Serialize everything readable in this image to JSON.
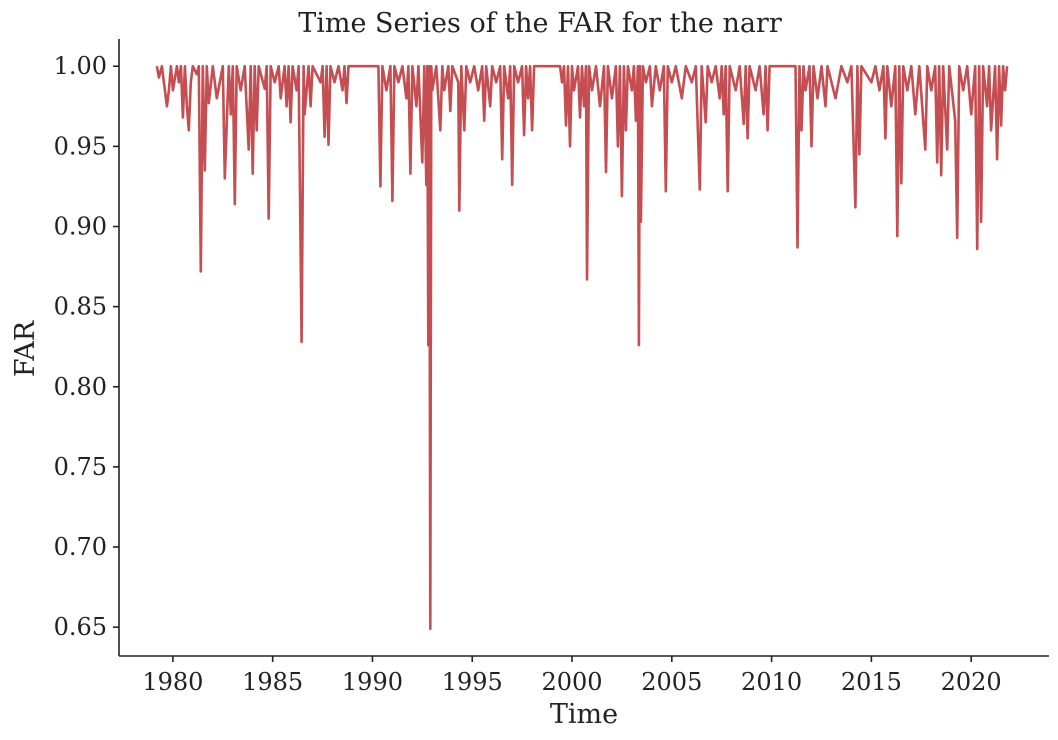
{
  "chart_data": {
    "type": "line",
    "title": "Time Series of the FAR for the narr",
    "xlabel": "Time",
    "ylabel": "FAR",
    "xlim": [
      1977.3,
      2023.9
    ],
    "ylim": [
      0.632,
      1.017
    ],
    "xticks": [
      1980,
      1985,
      1990,
      1995,
      2000,
      2005,
      2010,
      2015,
      2020
    ],
    "yticks": [
      0.65,
      0.7,
      0.75,
      0.8,
      0.85,
      0.9,
      0.95,
      1.0
    ],
    "ytick_labels": [
      "0.65",
      "0.70",
      "0.75",
      "0.80",
      "0.85",
      "0.90",
      "0.95",
      "1.00"
    ],
    "grid": false,
    "colors": {
      "series": "#c44e52",
      "axis": "#222222"
    },
    "series": [
      {
        "points": [
          [
            1979.2,
            1.0
          ],
          [
            1979.3,
            0.993
          ],
          [
            1979.45,
            1.0
          ],
          [
            1979.55,
            0.99
          ],
          [
            1979.7,
            0.975
          ],
          [
            1979.8,
            0.985
          ],
          [
            1979.9,
            1.0
          ],
          [
            1980.0,
            0.985
          ],
          [
            1980.2,
            1.0
          ],
          [
            1980.3,
            0.99
          ],
          [
            1980.4,
            1.0
          ],
          [
            1980.5,
            0.968
          ],
          [
            1980.6,
            1.0
          ],
          [
            1980.7,
            0.975
          ],
          [
            1980.8,
            0.96
          ],
          [
            1980.9,
            0.99
          ],
          [
            1981.0,
            1.0
          ],
          [
            1981.2,
            0.995
          ],
          [
            1981.3,
            1.0
          ],
          [
            1981.4,
            0.872
          ],
          [
            1981.5,
            1.0
          ],
          [
            1981.6,
            0.935
          ],
          [
            1981.7,
            1.0
          ],
          [
            1981.8,
            0.977
          ],
          [
            1982.0,
            1.0
          ],
          [
            1982.2,
            0.98
          ],
          [
            1982.5,
            1.0
          ],
          [
            1982.6,
            0.93
          ],
          [
            1982.8,
            1.0
          ],
          [
            1982.9,
            0.97
          ],
          [
            1983.0,
            1.0
          ],
          [
            1983.1,
            0.914
          ],
          [
            1983.2,
            1.0
          ],
          [
            1983.4,
            0.985
          ],
          [
            1983.6,
            1.0
          ],
          [
            1983.8,
            0.948
          ],
          [
            1983.9,
            1.0
          ],
          [
            1984.0,
            0.933
          ],
          [
            1984.1,
            1.0
          ],
          [
            1984.2,
            0.96
          ],
          [
            1984.3,
            1.0
          ],
          [
            1984.6,
            0.986
          ],
          [
            1984.7,
            1.0
          ],
          [
            1984.8,
            0.905
          ],
          [
            1984.9,
            1.0
          ],
          [
            1985.1,
            0.99
          ],
          [
            1985.3,
            1.0
          ],
          [
            1985.4,
            0.98
          ],
          [
            1985.6,
            1.0
          ],
          [
            1985.7,
            0.975
          ],
          [
            1985.8,
            1.0
          ],
          [
            1985.9,
            0.965
          ],
          [
            1986.0,
            1.0
          ],
          [
            1986.2,
            0.985
          ],
          [
            1986.3,
            1.0
          ],
          [
            1986.45,
            0.828
          ],
          [
            1986.55,
            1.0
          ],
          [
            1986.6,
            0.97
          ],
          [
            1986.8,
            1.0
          ],
          [
            1986.9,
            0.975
          ],
          [
            1987.0,
            1.0
          ],
          [
            1987.4,
            0.99
          ],
          [
            1987.5,
            1.0
          ],
          [
            1987.6,
            0.956
          ],
          [
            1987.7,
            1.0
          ],
          [
            1987.8,
            0.951
          ],
          [
            1987.9,
            1.0
          ],
          [
            1988.1,
            0.99
          ],
          [
            1988.3,
            1.0
          ],
          [
            1988.5,
            0.985
          ],
          [
            1988.6,
            1.0
          ],
          [
            1988.7,
            0.977
          ],
          [
            1988.8,
            1.0
          ],
          [
            1990.3,
            1.0
          ],
          [
            1990.4,
            0.925
          ],
          [
            1990.5,
            1.0
          ],
          [
            1990.7,
            0.985
          ],
          [
            1990.9,
            1.0
          ],
          [
            1991.0,
            0.916
          ],
          [
            1991.1,
            1.0
          ],
          [
            1991.3,
            0.99
          ],
          [
            1991.5,
            1.0
          ],
          [
            1991.7,
            0.98
          ],
          [
            1991.8,
            1.0
          ],
          [
            1991.9,
            0.933
          ],
          [
            1992.0,
            1.0
          ],
          [
            1992.2,
            0.975
          ],
          [
            1992.3,
            1.0
          ],
          [
            1992.5,
            0.94
          ],
          [
            1992.6,
            1.0
          ],
          [
            1992.7,
            0.926
          ],
          [
            1992.75,
            1.0
          ],
          [
            1992.8,
            0.826
          ],
          [
            1992.85,
            1.0
          ],
          [
            1992.9,
            0.649
          ],
          [
            1992.95,
            1.0
          ],
          [
            1993.0,
            0.985
          ],
          [
            1993.2,
            1.0
          ],
          [
            1993.4,
            0.96
          ],
          [
            1993.5,
            1.0
          ],
          [
            1993.6,
            0.985
          ],
          [
            1993.8,
            1.0
          ],
          [
            1993.9,
            0.972
          ],
          [
            1994.0,
            1.0
          ],
          [
            1994.3,
            0.99
          ],
          [
            1994.35,
            0.91
          ],
          [
            1994.45,
            1.0
          ],
          [
            1994.6,
            0.96
          ],
          [
            1994.7,
            1.0
          ],
          [
            1994.9,
            0.99
          ],
          [
            1995.1,
            1.0
          ],
          [
            1995.3,
            0.985
          ],
          [
            1995.5,
            1.0
          ],
          [
            1995.6,
            0.966
          ],
          [
            1995.7,
            1.0
          ],
          [
            1995.9,
            0.975
          ],
          [
            1996.0,
            1.0
          ],
          [
            1996.2,
            0.99
          ],
          [
            1996.4,
            1.0
          ],
          [
            1996.5,
            0.942
          ],
          [
            1996.6,
            1.0
          ],
          [
            1996.8,
            0.98
          ],
          [
            1996.9,
            1.0
          ],
          [
            1997.0,
            0.926
          ],
          [
            1997.1,
            1.0
          ],
          [
            1997.3,
            0.99
          ],
          [
            1997.5,
            1.0
          ],
          [
            1997.6,
            0.957
          ],
          [
            1997.7,
            1.0
          ],
          [
            1997.8,
            0.98
          ],
          [
            1997.9,
            1.0
          ],
          [
            1998.0,
            0.96
          ],
          [
            1998.1,
            1.0
          ],
          [
            1999.4,
            1.0
          ],
          [
            1999.5,
            0.99
          ],
          [
            1999.6,
            1.0
          ],
          [
            1999.7,
            0.963
          ],
          [
            1999.8,
            1.0
          ],
          [
            1999.9,
            0.95
          ],
          [
            2000.0,
            1.0
          ],
          [
            2000.1,
            0.985
          ],
          [
            2000.3,
            1.0
          ],
          [
            2000.4,
            0.968
          ],
          [
            2000.5,
            1.0
          ],
          [
            2000.6,
            0.975
          ],
          [
            2000.7,
            1.0
          ],
          [
            2000.75,
            0.867
          ],
          [
            2000.85,
            1.0
          ],
          [
            2001.0,
            0.985
          ],
          [
            2001.2,
            1.0
          ],
          [
            2001.4,
            0.975
          ],
          [
            2001.6,
            1.0
          ],
          [
            2001.7,
            0.934
          ],
          [
            2001.8,
            1.0
          ],
          [
            2002.0,
            0.98
          ],
          [
            2002.2,
            1.0
          ],
          [
            2002.3,
            0.95
          ],
          [
            2002.4,
            1.0
          ],
          [
            2002.5,
            0.919
          ],
          [
            2002.6,
            1.0
          ],
          [
            2002.7,
            0.96
          ],
          [
            2002.8,
            1.0
          ],
          [
            2003.0,
            0.985
          ],
          [
            2003.1,
            1.0
          ],
          [
            2003.2,
            0.966
          ],
          [
            2003.3,
            1.0
          ],
          [
            2003.35,
            0.826
          ],
          [
            2003.4,
            1.0
          ],
          [
            2003.45,
            0.903
          ],
          [
            2003.55,
            1.0
          ],
          [
            2003.7,
            0.99
          ],
          [
            2003.9,
            1.0
          ],
          [
            2004.0,
            0.975
          ],
          [
            2004.2,
            1.0
          ],
          [
            2004.4,
            0.985
          ],
          [
            2004.6,
            1.0
          ],
          [
            2004.7,
            0.922
          ],
          [
            2004.8,
            1.0
          ],
          [
            2005.0,
            0.99
          ],
          [
            2005.2,
            1.0
          ],
          [
            2005.5,
            0.98
          ],
          [
            2005.7,
            1.0
          ],
          [
            2006.0,
            0.99
          ],
          [
            2006.2,
            1.0
          ],
          [
            2006.4,
            0.923
          ],
          [
            2006.5,
            1.0
          ],
          [
            2006.7,
            0.965
          ],
          [
            2006.8,
            1.0
          ],
          [
            2007.0,
            0.99
          ],
          [
            2007.2,
            1.0
          ],
          [
            2007.4,
            0.98
          ],
          [
            2007.5,
            1.0
          ],
          [
            2007.6,
            0.97
          ],
          [
            2007.7,
            1.0
          ],
          [
            2007.8,
            0.922
          ],
          [
            2007.9,
            1.0
          ],
          [
            2008.2,
            0.985
          ],
          [
            2008.4,
            1.0
          ],
          [
            2008.6,
            0.964
          ],
          [
            2008.7,
            1.0
          ],
          [
            2008.8,
            0.955
          ],
          [
            2008.9,
            1.0
          ],
          [
            2009.2,
            0.985
          ],
          [
            2009.4,
            1.0
          ],
          [
            2009.6,
            0.97
          ],
          [
            2009.7,
            1.0
          ],
          [
            2009.8,
            0.96
          ],
          [
            2009.9,
            1.0
          ],
          [
            2011.2,
            1.0
          ],
          [
            2011.3,
            0.887
          ],
          [
            2011.4,
            1.0
          ],
          [
            2011.5,
            0.96
          ],
          [
            2011.6,
            1.0
          ],
          [
            2011.7,
            0.985
          ],
          [
            2011.9,
            1.0
          ],
          [
            2012.0,
            0.95
          ],
          [
            2012.1,
            1.0
          ],
          [
            2012.3,
            0.98
          ],
          [
            2012.5,
            1.0
          ],
          [
            2012.7,
            0.975
          ],
          [
            2012.8,
            1.0
          ],
          [
            2013.2,
            0.98
          ],
          [
            2013.5,
            1.0
          ],
          [
            2013.8,
            0.99
          ],
          [
            2014.0,
            1.0
          ],
          [
            2014.2,
            0.912
          ],
          [
            2014.3,
            1.0
          ],
          [
            2014.4,
            0.945
          ],
          [
            2014.5,
            1.0
          ],
          [
            2015.0,
            0.99
          ],
          [
            2015.2,
            1.0
          ],
          [
            2015.4,
            0.985
          ],
          [
            2015.6,
            1.0
          ],
          [
            2015.7,
            0.955
          ],
          [
            2015.8,
            1.0
          ],
          [
            2016.0,
            0.975
          ],
          [
            2016.2,
            1.0
          ],
          [
            2016.3,
            0.894
          ],
          [
            2016.4,
            1.0
          ],
          [
            2016.5,
            0.927
          ],
          [
            2016.6,
            1.0
          ],
          [
            2016.8,
            0.985
          ],
          [
            2017.0,
            1.0
          ],
          [
            2017.2,
            0.97
          ],
          [
            2017.4,
            1.0
          ],
          [
            2017.7,
            0.948
          ],
          [
            2017.8,
            1.0
          ],
          [
            2018.0,
            0.985
          ],
          [
            2018.2,
            1.0
          ],
          [
            2018.3,
            0.94
          ],
          [
            2018.4,
            1.0
          ],
          [
            2018.5,
            0.932
          ],
          [
            2018.6,
            1.0
          ],
          [
            2018.8,
            0.948
          ],
          [
            2018.9,
            1.0
          ],
          [
            2019.2,
            0.966
          ],
          [
            2019.3,
            0.893
          ],
          [
            2019.4,
            1.0
          ],
          [
            2019.6,
            0.985
          ],
          [
            2019.8,
            1.0
          ],
          [
            2020.0,
            0.97
          ],
          [
            2020.2,
            1.0
          ],
          [
            2020.3,
            0.886
          ],
          [
            2020.4,
            1.0
          ],
          [
            2020.5,
            0.903
          ],
          [
            2020.6,
            1.0
          ],
          [
            2020.8,
            0.975
          ],
          [
            2020.9,
            1.0
          ],
          [
            2021.0,
            0.96
          ],
          [
            2021.2,
            1.0
          ],
          [
            2021.3,
            0.942
          ],
          [
            2021.4,
            1.0
          ],
          [
            2021.5,
            0.963
          ],
          [
            2021.6,
            1.0
          ],
          [
            2021.7,
            0.985
          ],
          [
            2021.8,
            1.0
          ]
        ]
      }
    ]
  }
}
